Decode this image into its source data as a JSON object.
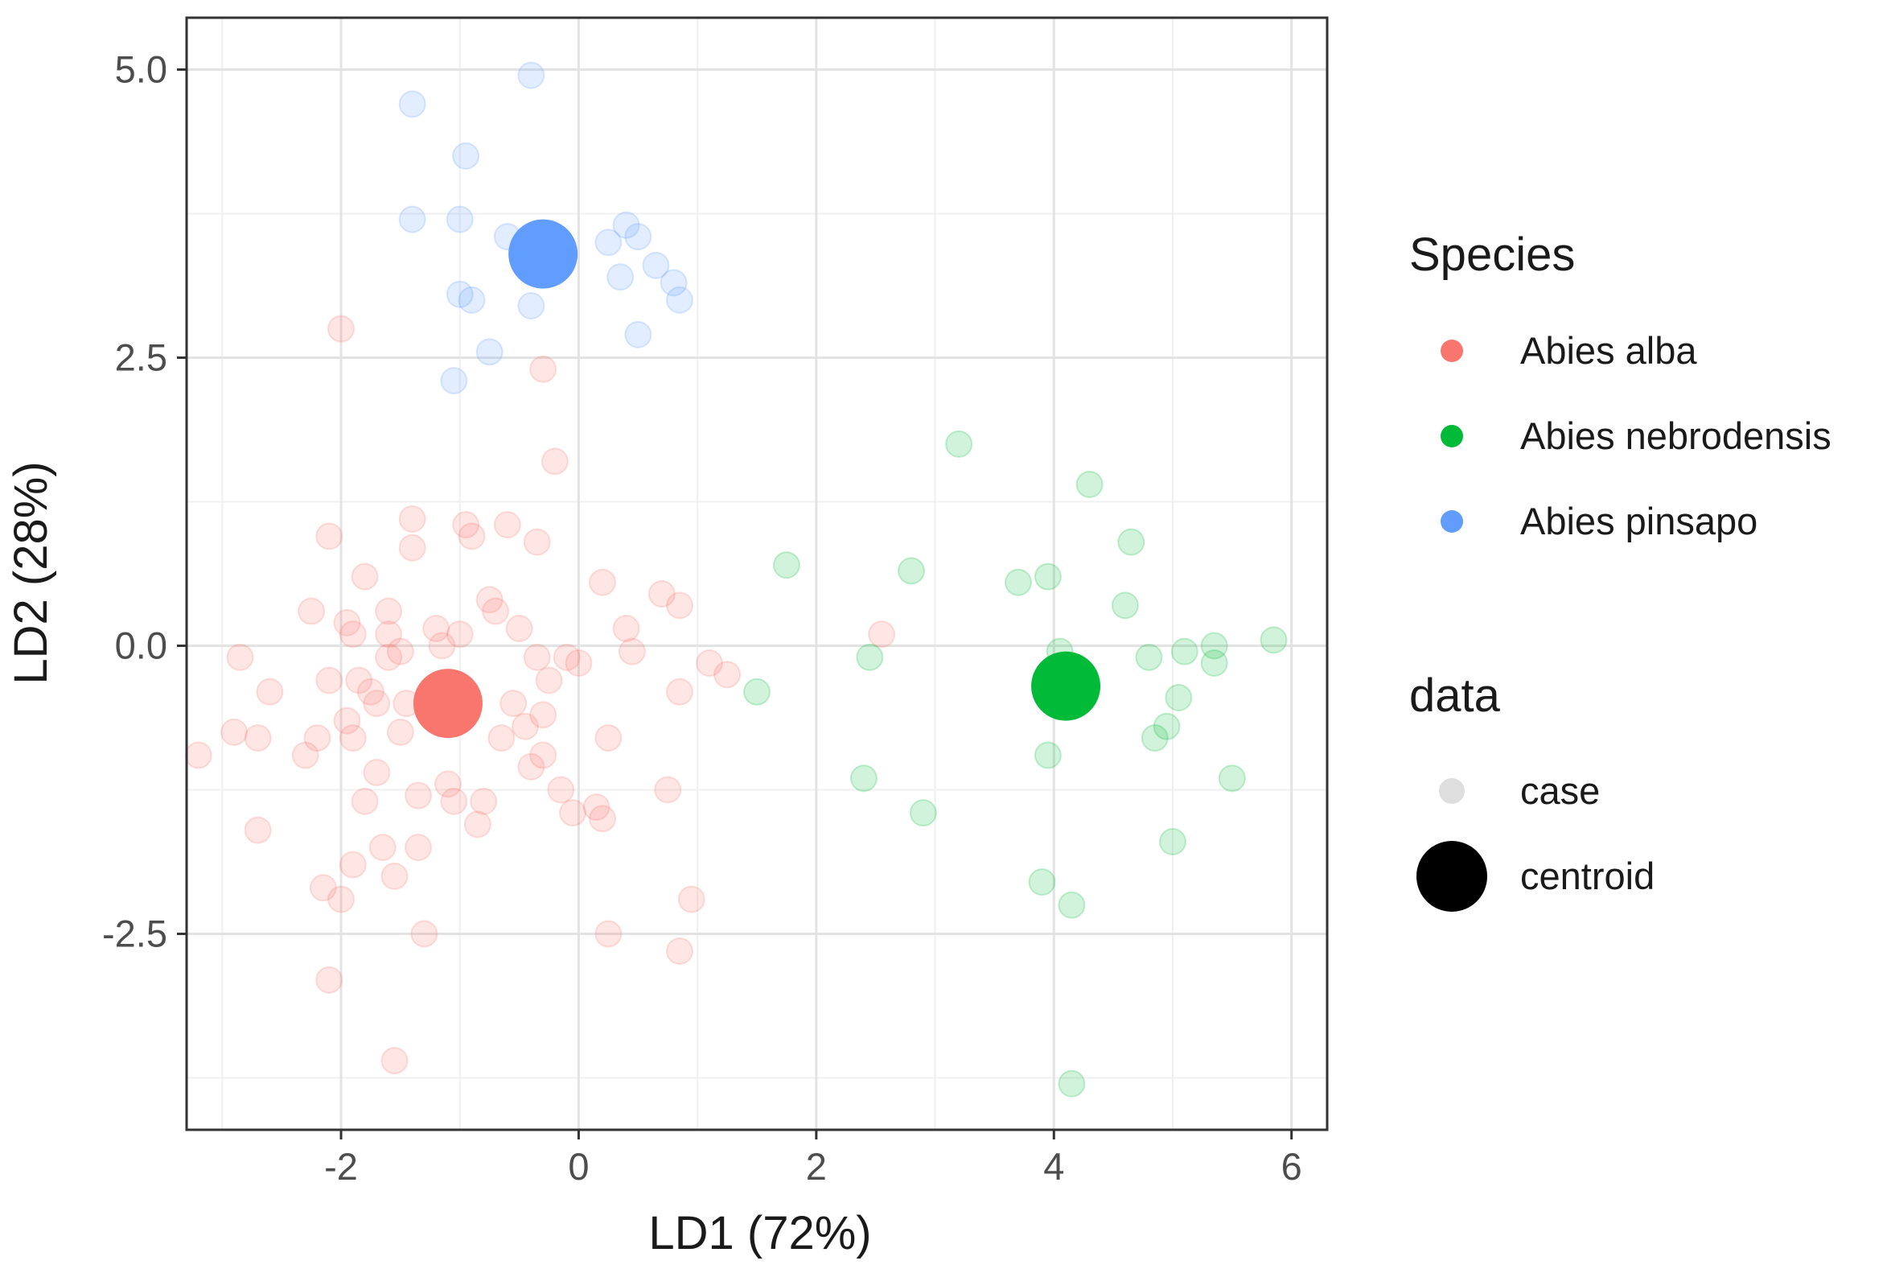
{
  "chart_data": {
    "type": "scatter",
    "title": "",
    "xlabel": "LD1 (72%)",
    "ylabel": "LD2 (28%)",
    "xlim": [
      -3.3,
      6.3
    ],
    "ylim": [
      -4.2,
      5.45
    ],
    "xticks": [
      -2,
      0,
      2,
      4,
      6
    ],
    "xtick_labels": [
      "-2",
      "0",
      "2",
      "4",
      "6"
    ],
    "yticks": [
      -2.5,
      0.0,
      2.5,
      5.0
    ],
    "ytick_labels": [
      "-2.5",
      "0.0",
      "2.5",
      "5.0"
    ],
    "grid": true,
    "legend_position": "right",
    "legend": {
      "species_title": "Species",
      "data_title": "data",
      "case_label": "case",
      "centroid_label": "centroid"
    },
    "series": [
      {
        "name": "Abies alba",
        "color": "#F8766D",
        "centroid": [
          -1.1,
          -0.5
        ],
        "points": [
          [
            -3.2,
            -0.95
          ],
          [
            -2.9,
            -0.75
          ],
          [
            -2.85,
            -0.1
          ],
          [
            -2.7,
            -0.8
          ],
          [
            -2.6,
            -0.4
          ],
          [
            -2.7,
            -1.6
          ],
          [
            -2.3,
            -0.95
          ],
          [
            -2.2,
            -0.8
          ],
          [
            -2.25,
            0.3
          ],
          [
            -2.1,
            0.95
          ],
          [
            -2.1,
            -0.3
          ],
          [
            -2.15,
            -2.1
          ],
          [
            -2.1,
            -2.9
          ],
          [
            -2.0,
            -2.2
          ],
          [
            -1.95,
            0.2
          ],
          [
            -1.9,
            0.1
          ],
          [
            -1.95,
            -0.65
          ],
          [
            -1.9,
            -1.9
          ],
          [
            -1.9,
            -0.8
          ],
          [
            -1.85,
            -0.3
          ],
          [
            -1.8,
            0.6
          ],
          [
            -1.8,
            -1.35
          ],
          [
            -1.75,
            -0.4
          ],
          [
            -1.7,
            -0.5
          ],
          [
            -1.7,
            -1.1
          ],
          [
            -1.65,
            -1.75
          ],
          [
            -1.6,
            0.3
          ],
          [
            -1.6,
            0.1
          ],
          [
            -1.6,
            -0.1
          ],
          [
            -1.55,
            -2.0
          ],
          [
            -1.5,
            -0.75
          ],
          [
            -1.5,
            -0.05
          ],
          [
            -1.45,
            -0.5
          ],
          [
            -1.4,
            1.1
          ],
          [
            -1.4,
            0.85
          ],
          [
            -1.35,
            -1.3
          ],
          [
            -1.35,
            -1.75
          ],
          [
            -1.3,
            -2.5
          ],
          [
            -1.55,
            -3.6
          ],
          [
            -1.2,
            0.15
          ],
          [
            -1.15,
            0.0
          ],
          [
            -1.1,
            -1.2
          ],
          [
            -1.05,
            -1.35
          ],
          [
            -1.0,
            0.1
          ],
          [
            -0.95,
            1.05
          ],
          [
            -0.9,
            0.95
          ],
          [
            -0.85,
            -1.55
          ],
          [
            -0.8,
            -1.35
          ],
          [
            -0.75,
            0.4
          ],
          [
            -0.7,
            0.3
          ],
          [
            -0.65,
            -0.8
          ],
          [
            -0.6,
            1.05
          ],
          [
            -0.55,
            -0.5
          ],
          [
            -0.5,
            0.15
          ],
          [
            -0.45,
            -0.7
          ],
          [
            -0.4,
            -1.05
          ],
          [
            -0.35,
            0.9
          ],
          [
            -0.35,
            -0.1
          ],
          [
            -0.3,
            -0.6
          ],
          [
            -0.3,
            2.4
          ],
          [
            -0.3,
            -0.95
          ],
          [
            -0.25,
            -0.3
          ],
          [
            -0.2,
            1.6
          ],
          [
            -0.15,
            -1.25
          ],
          [
            -0.1,
            -0.1
          ],
          [
            -0.05,
            -1.45
          ],
          [
            0.0,
            -0.15
          ],
          [
            0.15,
            -1.4
          ],
          [
            0.2,
            -1.5
          ],
          [
            0.2,
            0.55
          ],
          [
            0.25,
            -0.8
          ],
          [
            0.25,
            -2.5
          ],
          [
            0.4,
            0.15
          ],
          [
            0.45,
            -0.05
          ],
          [
            0.7,
            0.45
          ],
          [
            0.75,
            -1.25
          ],
          [
            0.85,
            -0.4
          ],
          [
            0.85,
            0.35
          ],
          [
            0.85,
            -2.65
          ],
          [
            0.95,
            -2.2
          ],
          [
            1.1,
            -0.15
          ],
          [
            1.25,
            -0.25
          ],
          [
            2.55,
            0.1
          ],
          [
            -2.0,
            2.75
          ]
        ]
      },
      {
        "name": "Abies nebrodensis",
        "color": "#00BA38",
        "centroid": [
          4.1,
          -0.35
        ],
        "points": [
          [
            1.5,
            -0.4
          ],
          [
            1.75,
            0.7
          ],
          [
            2.45,
            -0.1
          ],
          [
            2.4,
            -1.15
          ],
          [
            2.8,
            0.65
          ],
          [
            2.9,
            -1.45
          ],
          [
            3.2,
            1.75
          ],
          [
            3.7,
            0.55
          ],
          [
            3.9,
            -2.05
          ],
          [
            3.95,
            -0.95
          ],
          [
            3.95,
            0.6
          ],
          [
            4.05,
            -0.05
          ],
          [
            4.15,
            -2.25
          ],
          [
            4.15,
            -3.8
          ],
          [
            4.3,
            1.4
          ],
          [
            4.6,
            0.35
          ],
          [
            4.65,
            0.9
          ],
          [
            4.8,
            -0.1
          ],
          [
            4.85,
            -0.8
          ],
          [
            4.95,
            -0.7
          ],
          [
            5.0,
            -1.7
          ],
          [
            5.05,
            -0.45
          ],
          [
            5.1,
            -0.05
          ],
          [
            5.35,
            0.0
          ],
          [
            5.35,
            -0.15
          ],
          [
            5.5,
            -1.15
          ],
          [
            5.85,
            0.05
          ]
        ]
      },
      {
        "name": "Abies pinsapo",
        "color": "#619CFF",
        "centroid": [
          -0.3,
          3.4
        ],
        "points": [
          [
            -1.4,
            4.7
          ],
          [
            -0.4,
            4.95
          ],
          [
            -1.4,
            3.7
          ],
          [
            -1.0,
            3.7
          ],
          [
            -0.95,
            4.25
          ],
          [
            -0.6,
            3.55
          ],
          [
            -0.4,
            3.55
          ],
          [
            -1.0,
            3.05
          ],
          [
            -0.9,
            3.0
          ],
          [
            -0.4,
            2.95
          ],
          [
            -0.75,
            2.55
          ],
          [
            -1.05,
            2.3
          ],
          [
            0.25,
            3.5
          ],
          [
            0.4,
            3.65
          ],
          [
            0.5,
            3.55
          ],
          [
            0.35,
            3.2
          ],
          [
            0.65,
            3.3
          ],
          [
            0.8,
            3.15
          ],
          [
            0.85,
            3.0
          ],
          [
            0.5,
            2.7
          ]
        ]
      }
    ]
  }
}
